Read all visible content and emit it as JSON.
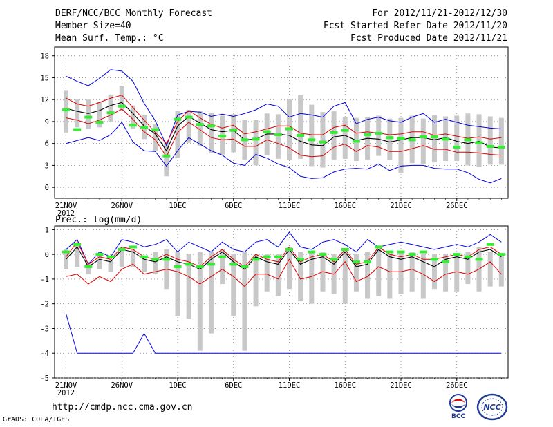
{
  "header": {
    "title": "DERF/NCC/BCC Monthly Forecast",
    "member_size": "Member Size=40",
    "variable_temp": "Mean Surf. Temp.: °C",
    "period": "For 2012/11/21-2012/12/30",
    "started": "Fcst Started Refer Date 2012/11/20",
    "produced": "Fcst Produced Date 2012/11/21"
  },
  "footer": {
    "url": "http://cmdp.ncc.cma.gov.cn",
    "grads": "GrADS: COLA/IGES",
    "logo_bcc": "BCC",
    "logo_ncc": "NCC"
  },
  "colors": {
    "max": "#0000dd",
    "spread": "#dd0000",
    "mean": "#000000",
    "box": "#c8c8c8",
    "obs": "#33ee33",
    "grid": "#888888"
  },
  "chart_data": [
    {
      "type": "line",
      "title": "Mean Surf. Temp.: °C",
      "xlabel": "",
      "ylabel": "",
      "ylim": [
        -1.5,
        19.2
      ],
      "yticks": [
        0,
        3,
        6,
        9,
        12,
        15,
        18
      ],
      "x_start": "2012-11-21",
      "xticks": [
        {
          "day": 0,
          "label": "21NOV"
        },
        {
          "day": 5,
          "label": "26NOV"
        },
        {
          "day": 10,
          "label": "1DEC"
        },
        {
          "day": 15,
          "label": "6DEC"
        },
        {
          "day": 20,
          "label": "11DEC"
        },
        {
          "day": 25,
          "label": "16DEC"
        },
        {
          "day": 30,
          "label": "21DEC"
        },
        {
          "day": 35,
          "label": "26DEC"
        }
      ],
      "x_year": "2012",
      "series": [
        {
          "name": "max",
          "role": "max",
          "values": [
            15.2,
            14.5,
            13.9,
            14.9,
            16.1,
            15.9,
            14.5,
            11.5,
            9.1,
            5.7,
            9.9,
            10.4,
            10.3,
            9.7,
            10.0,
            9.7,
            10.1,
            10.6,
            11.4,
            11.1,
            9.6,
            10.1,
            9.9,
            9.6,
            11.1,
            11.6,
            8.7,
            9.3,
            9.6,
            9.1,
            8.9,
            9.6,
            10.1,
            8.9,
            9.3,
            8.9,
            8.5,
            8.3,
            8.1,
            8.0
          ]
        },
        {
          "name": "mean+sd",
          "role": "upper",
          "values": [
            12.2,
            11.4,
            11.1,
            11.6,
            12.2,
            12.6,
            10.9,
            9.2,
            7.5,
            6.0,
            9.0,
            10.5,
            9.5,
            8.6,
            8.1,
            8.5,
            7.3,
            7.6,
            8.0,
            8.4,
            8.4,
            7.4,
            7.2,
            7.2,
            8.2,
            8.5,
            7.4,
            7.6,
            7.4,
            7.2,
            7.3,
            7.6,
            7.6,
            7.1,
            7.3,
            7.0,
            6.7,
            6.9,
            6.6,
            6.8
          ]
        },
        {
          "name": "mean",
          "role": "mean",
          "values": [
            10.8,
            10.4,
            10.1,
            10.5,
            11.2,
            11.6,
            10.1,
            8.4,
            7.3,
            5.0,
            8.4,
            9.7,
            8.8,
            7.9,
            7.6,
            7.8,
            6.5,
            6.6,
            7.3,
            7.3,
            7.1,
            6.3,
            5.8,
            5.7,
            6.9,
            7.1,
            6.4,
            6.7,
            6.6,
            6.2,
            6.5,
            6.8,
            6.8,
            6.5,
            6.8,
            6.3,
            6.0,
            6.3,
            5.5,
            5.4
          ]
        },
        {
          "name": "mean-sd",
          "role": "lower",
          "values": [
            9.5,
            9.2,
            8.7,
            9.2,
            9.9,
            10.7,
            9.3,
            7.6,
            6.5,
            4.2,
            7.5,
            8.9,
            7.9,
            6.8,
            6.5,
            6.6,
            5.6,
            5.6,
            6.5,
            6.0,
            5.4,
            4.4,
            4.2,
            4.3,
            5.5,
            5.9,
            4.9,
            5.7,
            5.5,
            4.9,
            4.9,
            5.3,
            5.7,
            5.2,
            5.2,
            4.8,
            4.8,
            4.7,
            4.5,
            4.4
          ]
        },
        {
          "name": "min",
          "role": "min",
          "values": [
            6.0,
            6.4,
            6.8,
            6.4,
            7.2,
            8.9,
            6.2,
            5.0,
            4.9,
            2.9,
            5.0,
            6.8,
            5.9,
            5.0,
            4.4,
            3.3,
            3.0,
            4.5,
            4.0,
            3.2,
            2.7,
            1.5,
            1.2,
            1.3,
            2.1,
            2.5,
            2.6,
            2.5,
            3.2,
            2.3,
            2.9,
            3.0,
            3.0,
            2.6,
            2.5,
            2.5,
            2.0,
            1.1,
            0.6,
            1.2
          ]
        }
      ],
      "boxes": [
        [
          7.5,
          13.3
        ],
        [
          8.2,
          12.0
        ],
        [
          8.0,
          12.0
        ],
        [
          8.2,
          11.7
        ],
        [
          9.0,
          12.7
        ],
        [
          10.5,
          13.9
        ],
        [
          8.0,
          11.2
        ],
        [
          6.6,
          9.9
        ],
        [
          5.0,
          8.6
        ],
        [
          1.5,
          6.3
        ],
        [
          4.0,
          10.5
        ],
        [
          6.1,
          10.6
        ],
        [
          5.7,
          10.5
        ],
        [
          4.7,
          10.2
        ],
        [
          4.5,
          9.8
        ],
        [
          4.8,
          10.0
        ],
        [
          3.8,
          9.2
        ],
        [
          3.0,
          9.2
        ],
        [
          4.4,
          10.1
        ],
        [
          3.9,
          10.0
        ],
        [
          3.7,
          12.0
        ],
        [
          3.9,
          12.6
        ],
        [
          2.9,
          11.3
        ],
        [
          2.7,
          10.3
        ],
        [
          3.8,
          10.4
        ],
        [
          3.9,
          9.6
        ],
        [
          3.6,
          9.5
        ],
        [
          3.8,
          9.6
        ],
        [
          4.3,
          9.8
        ],
        [
          3.7,
          9.4
        ],
        [
          2.0,
          9.5
        ],
        [
          3.3,
          9.8
        ],
        [
          3.2,
          9.4
        ],
        [
          3.4,
          9.9
        ],
        [
          3.6,
          9.7
        ],
        [
          3.6,
          9.8
        ],
        [
          3.0,
          10.1
        ],
        [
          2.8,
          10.0
        ],
        [
          3.1,
          9.7
        ],
        [
          3.1,
          9.5
        ]
      ],
      "observed": [
        10.6,
        7.9,
        9.6,
        8.9,
        10.2,
        11.1,
        8.5,
        8.2,
        7.9,
        4.3,
        9.3,
        9.6,
        8.6,
        8.4,
        7.0,
        7.8,
        6.5,
        6.6,
        7.6,
        7.2,
        8.0,
        7.1,
        6.5,
        6.2,
        7.5,
        7.8,
        6.3,
        7.2,
        7.4,
        6.8,
        6.7,
        6.5,
        6.9,
        6.9,
        6.6,
        5.5,
        6.5,
        6.1,
        5.6,
        5.5
      ]
    },
    {
      "type": "line",
      "title": "Prec.: log(mm/d)",
      "xlabel": "",
      "ylabel": "",
      "ylim": [
        -5,
        1.15
      ],
      "yticks": [
        -5,
        -4,
        -3,
        -2,
        -1,
        0,
        1
      ],
      "x_start": "2012-11-21",
      "xticks": [
        {
          "day": 0,
          "label": "21NOV"
        },
        {
          "day": 5,
          "label": "26NOV"
        },
        {
          "day": 10,
          "label": "1DEC"
        },
        {
          "day": 15,
          "label": "6DEC"
        },
        {
          "day": 20,
          "label": "11DEC"
        },
        {
          "day": 25,
          "label": "16DEC"
        },
        {
          "day": 30,
          "label": "21DEC"
        },
        {
          "day": 35,
          "label": "26DEC"
        }
      ],
      "x_year": "2012",
      "series": [
        {
          "name": "max",
          "role": "max",
          "values": [
            0.2,
            0.6,
            -0.4,
            0.1,
            -0.1,
            0.6,
            0.5,
            0.3,
            0.4,
            0.6,
            0.1,
            0.5,
            0.3,
            0.1,
            0.5,
            0.2,
            0.1,
            0.5,
            0.6,
            0.3,
            0.9,
            0.3,
            0.2,
            0.5,
            0.6,
            0.4,
            0.1,
            0.6,
            0.3,
            0.4,
            0.5,
            0.4,
            0.3,
            0.2,
            0.3,
            0.4,
            0.3,
            0.5,
            0.8,
            0.5
          ]
        },
        {
          "name": "mean+sd",
          "role": "upper",
          "values": [
            -0.1,
            0.5,
            -0.4,
            -0.1,
            -0.2,
            0.3,
            0.2,
            -0.1,
            -0.2,
            0.0,
            -0.2,
            -0.3,
            -0.5,
            -0.1,
            0.2,
            -0.2,
            -0.5,
            0.0,
            -0.2,
            -0.3,
            0.3,
            -0.3,
            -0.1,
            0.0,
            -0.3,
            0.2,
            -0.4,
            -0.3,
            0.3,
            0.0,
            -0.1,
            0.0,
            -0.2,
            -0.2,
            -0.1,
            0.0,
            -0.1,
            0.2,
            0.3,
            0.0
          ]
        },
        {
          "name": "mean",
          "role": "mean",
          "values": [
            -0.2,
            0.3,
            -0.5,
            -0.2,
            -0.3,
            0.2,
            0.1,
            -0.2,
            -0.3,
            -0.1,
            -0.3,
            -0.4,
            -0.6,
            -0.2,
            0.1,
            -0.3,
            -0.6,
            -0.1,
            -0.3,
            -0.4,
            0.2,
            -0.4,
            -0.2,
            -0.1,
            -0.4,
            0.1,
            -0.5,
            -0.4,
            0.2,
            -0.1,
            -0.2,
            -0.1,
            -0.3,
            -0.5,
            -0.2,
            -0.1,
            -0.2,
            0.1,
            0.2,
            -0.1
          ]
        },
        {
          "name": "mean-sd",
          "role": "lower",
          "values": [
            -0.9,
            -0.8,
            -1.2,
            -0.9,
            -1.1,
            -0.6,
            -0.4,
            -0.8,
            -0.7,
            -0.6,
            -0.7,
            -0.9,
            -1.2,
            -0.9,
            -0.6,
            -0.9,
            -1.3,
            -0.8,
            -0.8,
            -1.0,
            -0.2,
            -1.0,
            -0.9,
            -0.7,
            -0.8,
            -0.3,
            -1.1,
            -0.9,
            -0.5,
            -0.7,
            -0.7,
            -0.6,
            -0.8,
            -1.1,
            -0.8,
            -0.7,
            -0.8,
            -0.6,
            -0.3,
            -0.8
          ]
        },
        {
          "name": "min",
          "role": "min",
          "values": [
            -2.4,
            -4.0,
            -4.0,
            -4.0,
            -4.0,
            -4.0,
            -4.0,
            -3.2,
            -4.0,
            -4.0,
            -4.0,
            -4.0,
            -4.0,
            -4.0,
            -4.0,
            -4.0,
            -4.0,
            -4.0,
            -4.0,
            -4.0,
            -4.0,
            -4.0,
            -4.0,
            -4.0,
            -4.0,
            -4.0,
            -4.0,
            -4.0,
            -4.0,
            -4.0,
            -4.0,
            -4.0,
            -4.0,
            -4.0,
            -4.0,
            -4.0,
            -4.0,
            -4.0,
            -4.0,
            -4.0
          ]
        }
      ],
      "boxes": [
        [
          -0.6,
          0.2
        ],
        [
          -0.5,
          0.4
        ],
        [
          -0.8,
          -0.3
        ],
        [
          -0.6,
          0.0
        ],
        [
          -0.7,
          -0.2
        ],
        [
          -0.5,
          0.3
        ],
        [
          -0.5,
          0.2
        ],
        [
          -0.7,
          -0.1
        ],
        [
          -0.8,
          0.1
        ],
        [
          -1.4,
          0.2
        ],
        [
          -2.5,
          0.1
        ],
        [
          -2.6,
          0.0
        ],
        [
          -3.9,
          0.1
        ],
        [
          -3.2,
          0.1
        ],
        [
          -1.2,
          0.2
        ],
        [
          -2.5,
          0.0
        ],
        [
          -3.9,
          0.1
        ],
        [
          -2.1,
          0.0
        ],
        [
          -1.5,
          0.0
        ],
        [
          -1.7,
          0.0
        ],
        [
          -1.4,
          0.3
        ],
        [
          -1.9,
          0.1
        ],
        [
          -2.0,
          0.1
        ],
        [
          -1.5,
          0.1
        ],
        [
          -1.6,
          0.0
        ],
        [
          -2.0,
          0.2
        ],
        [
          -1.5,
          0.0
        ],
        [
          -1.8,
          0.1
        ],
        [
          -1.7,
          0.2
        ],
        [
          -1.8,
          0.0
        ],
        [
          -1.6,
          0.1
        ],
        [
          -1.5,
          0.1
        ],
        [
          -1.8,
          0.0
        ],
        [
          -1.4,
          0.0
        ],
        [
          -1.5,
          0.0
        ],
        [
          -1.5,
          0.0
        ],
        [
          -1.2,
          0.1
        ],
        [
          -1.5,
          0.3
        ],
        [
          -1.3,
          0.1
        ],
        [
          -1.3,
          0.0
        ]
      ],
      "observed": [
        0.1,
        0.4,
        -0.5,
        0.0,
        -0.1,
        0.2,
        0.3,
        -0.1,
        -0.2,
        -0.2,
        -0.5,
        -0.4,
        -0.5,
        -0.4,
        -0.1,
        -0.4,
        -0.5,
        -0.2,
        -0.1,
        -0.1,
        0.2,
        -0.2,
        0.1,
        0.0,
        -0.2,
        0.2,
        -0.3,
        -0.3,
        0.3,
        0.1,
        0.1,
        0.0,
        0.1,
        -0.2,
        -0.3,
        0.0,
        -0.1,
        -0.2,
        0.4,
        0.0
      ]
    }
  ]
}
